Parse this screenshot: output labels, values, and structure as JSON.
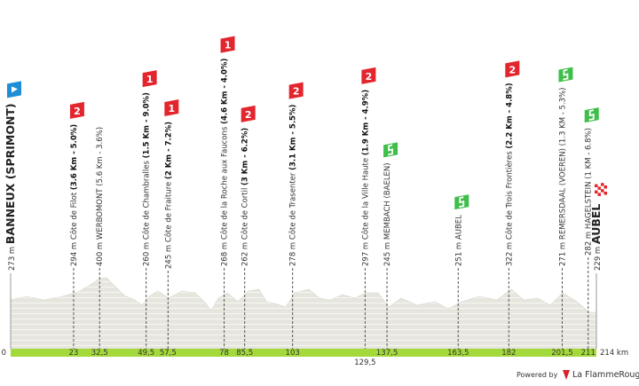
{
  "profile": {
    "waypoints": [
      {
        "km": {
          "value": 0,
          "label": "0"
        },
        "alt": "273 m",
        "name": "BANNEUX (SPRIMONT)",
        "start": true
      },
      {
        "km": 23,
        "alt": "294 m",
        "name": "Côte de Filot",
        "detail": "(3.6 Km - 5.0%)",
        "category": "2"
      },
      {
        "km": {
          "value": 32.5,
          "label": "32,5"
        },
        "alt": "400 m",
        "name": "WERBOMONT",
        "detail": "(5.6 Km - 3.6%)"
      },
      {
        "km": {
          "value": 49.5,
          "label": "49,5"
        },
        "alt": "260 m",
        "name": "Côte de Chambralles",
        "detail": "(1.5 Km - 9.0%)",
        "category": "1"
      },
      {
        "km": {
          "value": 57.5,
          "label": "57,5"
        },
        "alt": "245 m",
        "name": "Côte de Fraiture",
        "detail": "(2 Km - 7.2%)",
        "category": "1"
      },
      {
        "km": 78,
        "alt": "268 m",
        "name": "Côte de la Roche aux Faucons",
        "detail": "(4.6 Km - 4.0%)",
        "category": "1"
      },
      {
        "km": {
          "value": 85.5,
          "label": "85,5"
        },
        "alt": "262 m",
        "name": "Côte de Cortil",
        "detail": "(3 Km - 6.2%)",
        "category": "2"
      },
      {
        "km": 103,
        "alt": "278 m",
        "name": "Côte de Trasenter",
        "detail": "(3.1 Km - 5.5%)",
        "category": "2"
      },
      {
        "km": {
          "value": 129.5,
          "label": "129,5"
        },
        "alt": "297 m",
        "name": "Côte de la Ville Haute",
        "detail": "(1.9 Km - 4.9%)",
        "category": "2"
      },
      {
        "km": {
          "value": 137.5,
          "label": "137,5"
        },
        "alt": "245 m",
        "name": "MEMBACH (BAELEN)",
        "sprint": true
      },
      {
        "km": {
          "value": 163.5,
          "label": "163,5"
        },
        "alt": "251 m",
        "name": "AUBEL",
        "sprint": true
      },
      {
        "km": 182,
        "alt": "322 m",
        "name": "Côte de Trois Frontières",
        "detail": "(2.2 Km - 4.8%)",
        "category": "2"
      },
      {
        "km": {
          "value": 201.5,
          "label": "201,5"
        },
        "alt": "271 m",
        "name": "REMERSDAAL (VOEREN)",
        "detail": "(1.3 KM - 5.3%)",
        "sprint": true
      },
      {
        "km": 211,
        "alt": "282 m",
        "name": "HAGELSTEIN",
        "detail": "(1 KM - 6.8%)",
        "sprint": true
      },
      {
        "km": {
          "value": 214,
          "label": "214 km"
        },
        "alt": "229 m",
        "name": "AUBEL",
        "finish": true
      }
    ],
    "footer": {
      "powered": "Powered by",
      "brand": "La FlammeRouge"
    }
  }
}
